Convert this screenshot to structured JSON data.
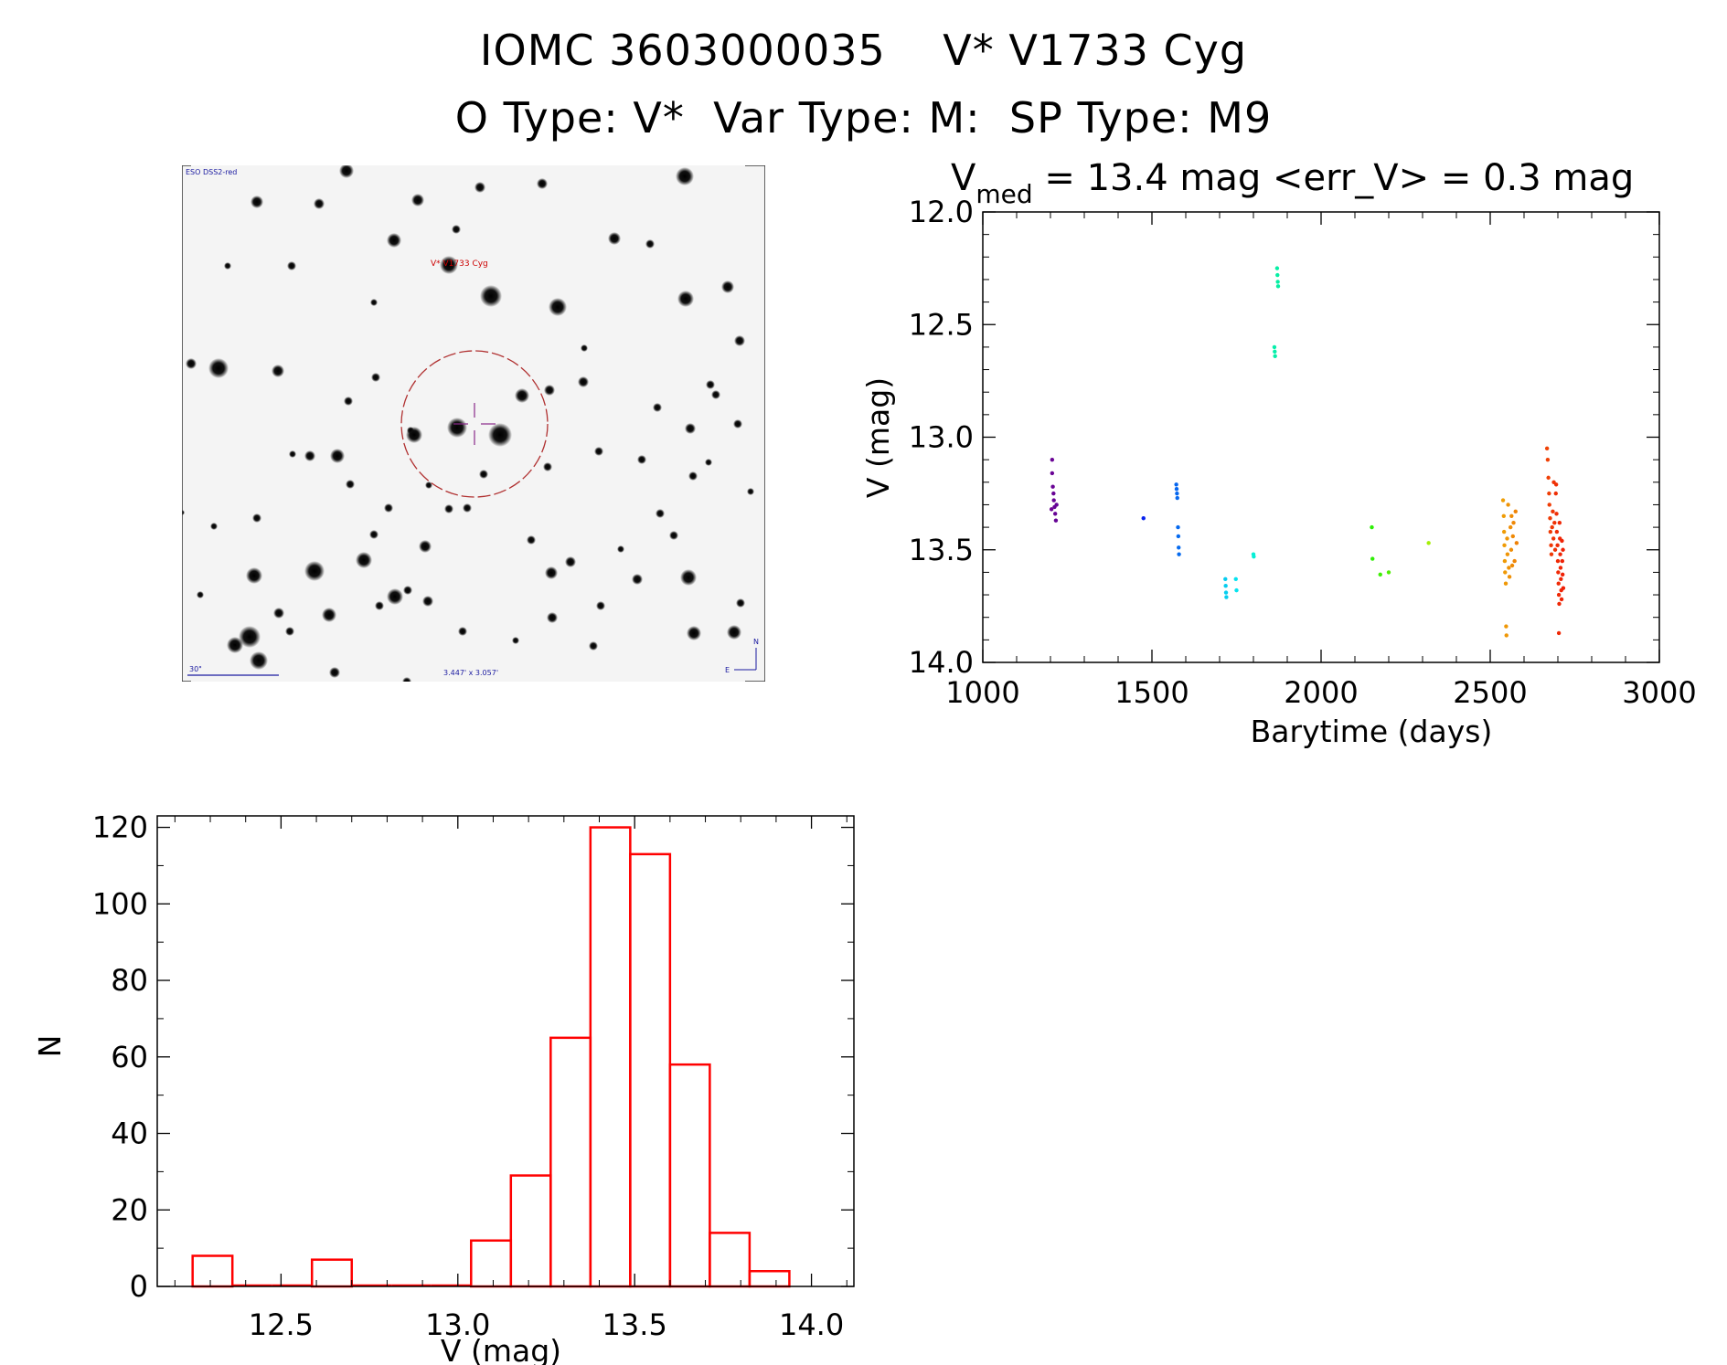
{
  "header": {
    "title_line1": "IOMC 3603000035    V* V1733 Cyg",
    "title_line2": "O Type: V*  Var Type: M:  SP Type: M9"
  },
  "finder_chart": {
    "survey_label": "ESO DSS2-red",
    "target_label": "V* V1733 Cyg",
    "scale_label": "30\"",
    "fov_label": "3.447' x 3.057'",
    "north_label": "N",
    "east_label": "E",
    "colors": {
      "circle": "#b03030",
      "label": "#cc0000",
      "annotation": "#1a1aa0",
      "crosshair": "#8a2a8a"
    }
  },
  "chart_data": [
    {
      "type": "scatter",
      "title_prefix": "V",
      "title_subscript": "med",
      "title_rest": " = 13.4 mag <err_V> = 0.3 mag",
      "xlabel": "Barytime (days)",
      "ylabel": "V (mag)",
      "xlim": [
        1000,
        3000
      ],
      "ylim": [
        14.0,
        12.0
      ],
      "y_inverted": true,
      "xticks": [
        1000,
        1500,
        2000,
        2500,
        3000
      ],
      "yticks": [
        12.0,
        12.5,
        13.0,
        13.5,
        14.0
      ],
      "color_coding": "rainbow by time (purple to red)",
      "points": [
        [
          1205,
          13.1
        ],
        [
          1205,
          13.16
        ],
        [
          1207,
          13.22
        ],
        [
          1209,
          13.25
        ],
        [
          1210,
          13.28
        ],
        [
          1212,
          13.31
        ],
        [
          1214,
          13.34
        ],
        [
          1216,
          13.37
        ],
        [
          1218,
          13.3
        ],
        [
          1203,
          13.32
        ],
        [
          1475,
          13.36
        ],
        [
          1572,
          13.21
        ],
        [
          1573,
          13.23
        ],
        [
          1574,
          13.25
        ],
        [
          1575,
          13.27
        ],
        [
          1577,
          13.4
        ],
        [
          1578,
          13.44
        ],
        [
          1579,
          13.49
        ],
        [
          1580,
          13.52
        ],
        [
          1717,
          13.63
        ],
        [
          1718,
          13.66
        ],
        [
          1719,
          13.69
        ],
        [
          1720,
          13.71
        ],
        [
          1748,
          13.63
        ],
        [
          1750,
          13.68
        ],
        [
          1800,
          13.52
        ],
        [
          1801,
          13.53
        ],
        [
          1862,
          12.6
        ],
        [
          1863,
          12.62
        ],
        [
          1864,
          12.64
        ],
        [
          1870,
          12.25
        ],
        [
          1871,
          12.28
        ],
        [
          1872,
          12.31
        ],
        [
          1873,
          12.33
        ],
        [
          2150,
          13.4
        ],
        [
          2152,
          13.54
        ],
        [
          2175,
          13.61
        ],
        [
          2200,
          13.6
        ],
        [
          2318,
          13.47
        ],
        [
          2538,
          13.28
        ],
        [
          2540,
          13.35
        ],
        [
          2541,
          13.42
        ],
        [
          2542,
          13.48
        ],
        [
          2543,
          13.55
        ],
        [
          2544,
          13.6
        ],
        [
          2546,
          13.65
        ],
        [
          2547,
          13.84
        ],
        [
          2548,
          13.88
        ],
        [
          2550,
          13.45
        ],
        [
          2551,
          13.52
        ],
        [
          2553,
          13.3
        ],
        [
          2555,
          13.58
        ],
        [
          2557,
          13.62
        ],
        [
          2560,
          13.4
        ],
        [
          2562,
          13.5
        ],
        [
          2563,
          13.35
        ],
        [
          2565,
          13.57
        ],
        [
          2567,
          13.44
        ],
        [
          2569,
          13.38
        ],
        [
          2572,
          13.55
        ],
        [
          2575,
          13.33
        ],
        [
          2578,
          13.47
        ],
        [
          2668,
          13.05
        ],
        [
          2670,
          13.1
        ],
        [
          2672,
          13.18
        ],
        [
          2674,
          13.25
        ],
        [
          2675,
          13.3
        ],
        [
          2677,
          13.36
        ],
        [
          2678,
          13.42
        ],
        [
          2680,
          13.48
        ],
        [
          2681,
          13.52
        ],
        [
          2683,
          13.4
        ],
        [
          2685,
          13.33
        ],
        [
          2687,
          13.45
        ],
        [
          2688,
          13.2
        ],
        [
          2690,
          13.38
        ],
        [
          2692,
          13.5
        ],
        [
          2694,
          13.25
        ],
        [
          2696,
          13.34
        ],
        [
          2697,
          13.42
        ],
        [
          2699,
          13.48
        ],
        [
          2700,
          13.55
        ],
        [
          2701,
          13.6
        ],
        [
          2702,
          13.65
        ],
        [
          2703,
          13.7
        ],
        [
          2704,
          13.74
        ],
        [
          2705,
          13.38
        ],
        [
          2706,
          13.45
        ],
        [
          2707,
          13.52
        ],
        [
          2708,
          13.58
        ],
        [
          2709,
          13.63
        ],
        [
          2710,
          13.68
        ],
        [
          2711,
          13.72
        ],
        [
          2712,
          13.46
        ],
        [
          2713,
          13.55
        ],
        [
          2714,
          13.61
        ],
        [
          2715,
          13.5
        ],
        [
          2716,
          13.67
        ],
        [
          2703,
          13.87
        ],
        [
          2695,
          13.21
        ]
      ]
    },
    {
      "type": "bar",
      "subtype": "histogram",
      "xlabel": "V (mag)",
      "ylabel": "N",
      "xlim": [
        12.15,
        14.12
      ],
      "ylim": [
        0,
        123
      ],
      "xticks": [
        12.5,
        13.0,
        13.5,
        14.0
      ],
      "yticks": [
        0,
        20,
        40,
        60,
        80,
        100,
        120
      ],
      "bin_width": 0.1125,
      "bin_starts": [
        12.25,
        12.3625,
        12.475,
        12.5875,
        12.7,
        12.8125,
        12.925,
        13.0375,
        13.15,
        13.2625,
        13.375,
        13.4875,
        13.6,
        13.7125,
        13.825
      ],
      "values": [
        8,
        0,
        0,
        7,
        0,
        0,
        0,
        12,
        29,
        65,
        120,
        113,
        58,
        14,
        4
      ],
      "color": "#ff0000"
    }
  ]
}
